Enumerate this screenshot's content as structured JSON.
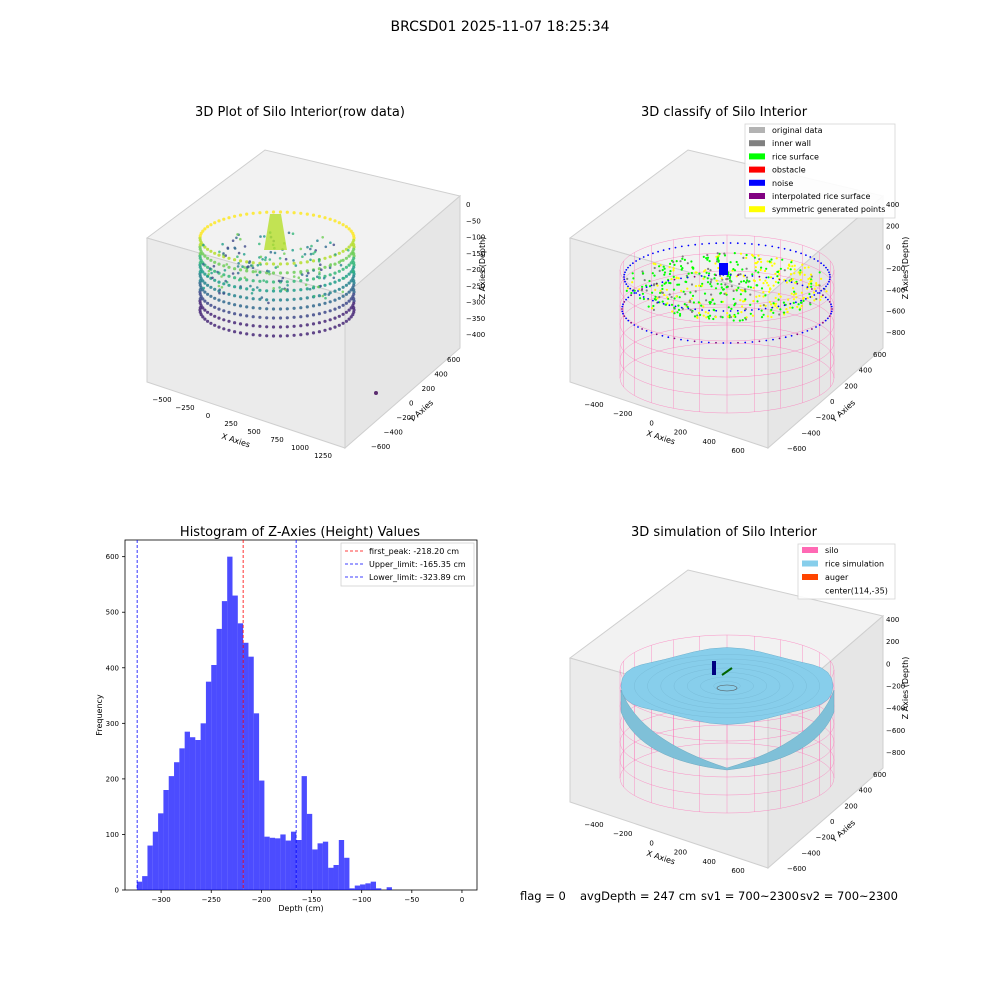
{
  "suptitle": "BRCSD01 2025-11-07 18:25:34",
  "panels": {
    "raw": {
      "title": "3D Plot of Silo Interior(row data)",
      "xlabel": "X Axies",
      "ylabel": "Y Axies",
      "zlabel": "Z Axies (Depth)",
      "xticks": [
        "−500",
        "−250",
        "0",
        "250",
        "500",
        "750",
        "1000",
        "1250"
      ],
      "yticks": [
        "600",
        "400",
        "200",
        "0",
        "−200",
        "−400",
        "−600"
      ],
      "zticks": [
        "0",
        "−50",
        "−100",
        "−150",
        "−200",
        "−250",
        "−300",
        "−350",
        "−400"
      ]
    },
    "classify": {
      "title": "3D classify of Silo Interior",
      "xlabel": "X Axies",
      "ylabel": "Y Axies",
      "zlabel": "Z Axies (Depth)",
      "xticks": [
        "−400",
        "−200",
        "0",
        "200",
        "400",
        "600"
      ],
      "yticks": [
        "600",
        "400",
        "200",
        "0",
        "−200",
        "−400",
        "−600"
      ],
      "zticks": [
        "400",
        "200",
        "0",
        "−200",
        "−400",
        "−600",
        "−800"
      ],
      "legend": [
        {
          "label": "original data",
          "color": "#b3b3b3"
        },
        {
          "label": "inner wall",
          "color": "#808080"
        },
        {
          "label": "rice surface",
          "color": "#00ff00"
        },
        {
          "label": "obstacle",
          "color": "#ff0000"
        },
        {
          "label": "noise",
          "color": "#0000ff"
        },
        {
          "label": "interpolated rice surface",
          "color": "#800080"
        },
        {
          "label": "symmetric generated points",
          "color": "#ffff00"
        }
      ]
    },
    "simulation": {
      "title": "3D simulation of Silo Interior",
      "xlabel": "X Axies",
      "ylabel": "Y Axies",
      "zlabel": "Z Axies (Depth)",
      "xticks": [
        "−400",
        "−200",
        "0",
        "200",
        "400",
        "600"
      ],
      "yticks": [
        "600",
        "400",
        "200",
        "0",
        "−200",
        "−400",
        "−600"
      ],
      "zticks": [
        "400",
        "200",
        "0",
        "−200",
        "−400",
        "−600",
        "−800"
      ],
      "legend": [
        {
          "label": "silo",
          "color": "#ff69b4"
        },
        {
          "label": "rice simulation",
          "color": "#87ceeb"
        },
        {
          "label": "auger",
          "color": "#ff4500"
        },
        {
          "label": "center(114,-35)",
          "color": ""
        }
      ]
    }
  },
  "status_line": {
    "flag": "flag = 0",
    "avg_depth": "avgDepth = 247 cm",
    "sv1": "sv1 = 700~2300",
    "sv2": "sv2 = 700~2300"
  },
  "chart_data": [
    {
      "type": "histogram",
      "title": "Histogram of Z-Axies (Height) Values",
      "xlabel": "Depth (cm)",
      "ylabel": "Frequency",
      "bar_color": "#0000ff",
      "xlim": [
        -336,
        15
      ],
      "ylim": [
        0,
        630
      ],
      "xticks": [
        -300,
        -250,
        -200,
        -150,
        -100,
        -50,
        0
      ],
      "xtick_labels": [
        "−300",
        "−250",
        "−200",
        "−150",
        "−100",
        "−50",
        "0"
      ],
      "yticks": [
        0,
        100,
        200,
        300,
        400,
        500,
        600
      ],
      "bin_width": 5.3,
      "bin_start": -324.2,
      "values": [
        15,
        25,
        80,
        105,
        138,
        180,
        205,
        230,
        255,
        285,
        275,
        270,
        300,
        375,
        405,
        470,
        520,
        600,
        530,
        480,
        445,
        420,
        318,
        197,
        96,
        94,
        93,
        100,
        89,
        105,
        90,
        205,
        137,
        73,
        84,
        87,
        40,
        45,
        90,
        58,
        3,
        8,
        10,
        12,
        15,
        3,
        0,
        5
      ],
      "lines": [
        {
          "label": "first_peak: -218.20 cm",
          "value": -218.2,
          "color": "#ff0000"
        },
        {
          "label": "Upper_limit: -165.35 cm",
          "value": -165.35,
          "color": "#0000ff"
        },
        {
          "label": "Lower_limit: -323.89 cm",
          "value": -323.89,
          "color": "#0000ff"
        }
      ],
      "legend_position": "top-right"
    }
  ]
}
